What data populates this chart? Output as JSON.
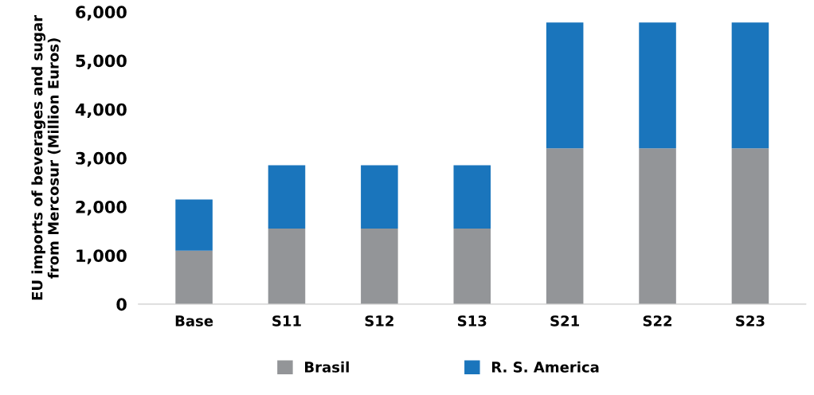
{
  "chart_data": {
    "type": "bar",
    "stacked": true,
    "ylabel": "EU imports of beverages and sugar\nfrom Mercosur (Million Euros)",
    "categories": [
      "Base",
      "S11",
      "S12",
      "S13",
      "S21",
      "S22",
      "S23"
    ],
    "series": [
      {
        "name": "Brasil",
        "color": "#939598",
        "values": [
          1100,
          1550,
          1550,
          1550,
          3200,
          3200,
          3200
        ]
      },
      {
        "name": "R. S. America",
        "color": "#1a75bc",
        "values": [
          1050,
          1300,
          1300,
          1300,
          2580,
          2580,
          2580
        ]
      }
    ],
    "ylim": [
      0,
      6000
    ],
    "yticks": [
      {
        "value": 0,
        "label": "0"
      },
      {
        "value": 1000,
        "label": "1,000"
      },
      {
        "value": 2000,
        "label": "2,000"
      },
      {
        "value": 3000,
        "label": "3,000"
      },
      {
        "value": 4000,
        "label": "4,000"
      },
      {
        "value": 5000,
        "label": "5,000"
      },
      {
        "value": 6000,
        "label": "6,000"
      }
    ],
    "grid": false,
    "legend": "bottom"
  }
}
